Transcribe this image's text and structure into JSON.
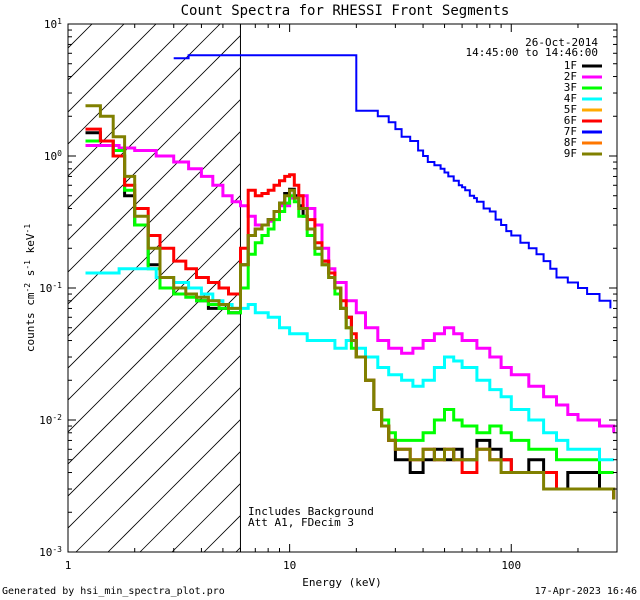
{
  "chart_data": {
    "type": "line",
    "title": "Count Spectra for RHESSI Front Segments",
    "xlabel": "Energy (keV)",
    "ylabel": "counts cm^-2 s^-1 keV^-1",
    "x_scale": "log",
    "y_scale": "log",
    "xlim": [
      1,
      300
    ],
    "ylim": [
      0.001,
      10
    ],
    "x_ticks": [
      {
        "value": 1,
        "label": "1"
      },
      {
        "value": 10,
        "label": "10"
      },
      {
        "value": 100,
        "label": "100"
      }
    ],
    "y_ticks": [
      {
        "value": 10,
        "base": "10",
        "exp": "1"
      },
      {
        "value": 1,
        "base": "10",
        "exp": "0"
      },
      {
        "value": 0.1,
        "base": "10",
        "exp": "-1"
      },
      {
        "value": 0.01,
        "base": "10",
        "exp": "-2"
      },
      {
        "value": 0.001,
        "base": "10",
        "exp": "-3"
      }
    ],
    "date_label": "26-Oct-2014",
    "time_range_label": "14:45:00 to 14:46:00",
    "annotations": [
      "Includes Background",
      "Att A1, FDecim 3"
    ],
    "attenuator_cutoff_kev": 6,
    "legend_position": "top-right",
    "series": [
      {
        "name": "1F",
        "color": "#000000",
        "x": [
          1.2,
          1.4,
          1.6,
          1.8,
          2.0,
          2.3,
          2.6,
          3.0,
          3.4,
          3.8,
          4.3,
          4.8,
          5.3,
          6.0,
          6.5,
          7.0,
          7.5,
          8.0,
          8.5,
          9.0,
          9.5,
          10.0,
          10.5,
          11.0,
          11.5,
          12.0,
          13.0,
          14.0,
          15.0,
          16.0,
          17.0,
          18.0,
          19.0,
          20.0,
          22,
          24,
          26,
          28,
          30,
          35,
          40,
          45,
          50,
          55,
          60,
          70,
          80,
          90,
          100,
          120,
          140,
          160,
          180,
          200,
          250,
          290
        ],
        "y": [
          1.5,
          1.3,
          1.0,
          0.5,
          0.3,
          0.15,
          0.1,
          0.09,
          0.09,
          0.08,
          0.07,
          0.07,
          0.065,
          0.15,
          0.25,
          0.28,
          0.3,
          0.33,
          0.38,
          0.44,
          0.52,
          0.56,
          0.5,
          0.42,
          0.35,
          0.28,
          0.2,
          0.16,
          0.13,
          0.1,
          0.07,
          0.06,
          0.04,
          0.03,
          0.02,
          0.012,
          0.009,
          0.007,
          0.005,
          0.004,
          0.005,
          0.006,
          0.005,
          0.006,
          0.005,
          0.007,
          0.006,
          0.005,
          0.004,
          0.005,
          0.004,
          0.003,
          0.004,
          0.004,
          0.003,
          0.0025
        ]
      },
      {
        "name": "2F",
        "color": "#ff00ff",
        "x": [
          1.2,
          1.4,
          1.7,
          2.0,
          2.5,
          3.0,
          3.5,
          4.0,
          4.5,
          5.0,
          5.5,
          6.0,
          6.5,
          7.0,
          7.5,
          8.0,
          8.5,
          9.0,
          10.0,
          11.0,
          12.0,
          13.0,
          14.0,
          15.0,
          16.0,
          18.0,
          20,
          22,
          25,
          28,
          32,
          36,
          40,
          45,
          50,
          55,
          60,
          70,
          80,
          90,
          100,
          120,
          140,
          160,
          180,
          200,
          250,
          290
        ],
        "y": [
          1.2,
          1.2,
          1.15,
          1.1,
          1.0,
          0.9,
          0.8,
          0.7,
          0.6,
          0.5,
          0.45,
          0.42,
          0.35,
          0.3,
          0.3,
          0.32,
          0.38,
          0.42,
          0.48,
          0.5,
          0.4,
          0.3,
          0.2,
          0.14,
          0.11,
          0.08,
          0.065,
          0.05,
          0.04,
          0.035,
          0.032,
          0.035,
          0.04,
          0.045,
          0.05,
          0.045,
          0.04,
          0.035,
          0.03,
          0.025,
          0.022,
          0.018,
          0.015,
          0.013,
          0.011,
          0.01,
          0.009,
          0.008
        ]
      },
      {
        "name": "3F",
        "color": "#00ff00",
        "x": [
          1.2,
          1.4,
          1.6,
          1.8,
          2.0,
          2.3,
          2.6,
          3.0,
          3.4,
          3.8,
          4.3,
          4.8,
          5.3,
          6.0,
          6.5,
          7.0,
          7.5,
          8.0,
          8.5,
          9.0,
          9.5,
          10.0,
          10.5,
          11.0,
          12.0,
          13.0,
          14.0,
          15.0,
          16.0,
          17.0,
          18.0,
          19.0,
          20,
          22,
          24,
          26,
          28,
          30,
          35,
          40,
          45,
          50,
          55,
          60,
          70,
          80,
          90,
          100,
          120,
          140,
          160,
          180,
          200,
          250,
          290
        ],
        "y": [
          1.3,
          1.3,
          1.1,
          0.55,
          0.3,
          0.14,
          0.1,
          0.09,
          0.085,
          0.08,
          0.075,
          0.07,
          0.065,
          0.1,
          0.18,
          0.22,
          0.25,
          0.28,
          0.33,
          0.38,
          0.44,
          0.5,
          0.45,
          0.35,
          0.25,
          0.18,
          0.15,
          0.12,
          0.09,
          0.07,
          0.05,
          0.035,
          0.03,
          0.02,
          0.012,
          0.01,
          0.008,
          0.007,
          0.007,
          0.008,
          0.01,
          0.012,
          0.01,
          0.009,
          0.008,
          0.009,
          0.008,
          0.007,
          0.006,
          0.006,
          0.005,
          0.005,
          0.005,
          0.004,
          0.004
        ]
      },
      {
        "name": "4F",
        "color": "#00ffff",
        "x": [
          1.2,
          1.4,
          1.7,
          2.0,
          2.5,
          3.0,
          3.5,
          4.0,
          4.5,
          5.0,
          5.5,
          6.0,
          6.5,
          7.0,
          8.0,
          9.0,
          10.0,
          11.0,
          12.0,
          14.0,
          16.0,
          18.0,
          20,
          22,
          25,
          28,
          32,
          36,
          40,
          45,
          50,
          55,
          60,
          70,
          80,
          90,
          100,
          120,
          140,
          160,
          180,
          200,
          250,
          290
        ],
        "y": [
          0.13,
          0.13,
          0.14,
          0.14,
          0.12,
          0.11,
          0.1,
          0.09,
          0.08,
          0.075,
          0.07,
          0.07,
          0.075,
          0.065,
          0.06,
          0.05,
          0.045,
          0.045,
          0.04,
          0.04,
          0.035,
          0.04,
          0.035,
          0.03,
          0.025,
          0.022,
          0.02,
          0.018,
          0.02,
          0.025,
          0.03,
          0.028,
          0.025,
          0.02,
          0.017,
          0.015,
          0.012,
          0.01,
          0.008,
          0.007,
          0.006,
          0.006,
          0.005,
          0.005
        ]
      },
      {
        "name": "5F",
        "color": "#ffaa00",
        "x": [],
        "y": []
      },
      {
        "name": "6F",
        "color": "#ff0000",
        "x": [
          1.2,
          1.4,
          1.6,
          1.8,
          2.0,
          2.3,
          2.6,
          3.0,
          3.4,
          3.8,
          4.3,
          4.8,
          5.3,
          6.0,
          6.5,
          7.0,
          7.5,
          8.0,
          8.5,
          9.0,
          9.5,
          10.0,
          10.5,
          11.0,
          11.5,
          12.0,
          13.0,
          14.0,
          15.0,
          16.0,
          17.0,
          18.0,
          19.0,
          20,
          22,
          24,
          26,
          28,
          30,
          35,
          40,
          45,
          50,
          55,
          60,
          70,
          80,
          90,
          100,
          120,
          140,
          160,
          180,
          200,
          250,
          290
        ],
        "y": [
          1.6,
          1.3,
          1.0,
          0.6,
          0.4,
          0.25,
          0.2,
          0.16,
          0.14,
          0.12,
          0.11,
          0.1,
          0.09,
          0.2,
          0.55,
          0.5,
          0.52,
          0.55,
          0.6,
          0.65,
          0.7,
          0.72,
          0.6,
          0.5,
          0.4,
          0.33,
          0.22,
          0.16,
          0.13,
          0.1,
          0.08,
          0.06,
          0.045,
          0.03,
          0.02,
          0.012,
          0.009,
          0.007,
          0.006,
          0.005,
          0.006,
          0.005,
          0.006,
          0.005,
          0.004,
          0.006,
          0.005,
          0.005,
          0.004,
          0.004,
          0.004,
          0.003,
          0.003,
          0.003,
          0.003,
          0.0025
        ]
      },
      {
        "name": "7F",
        "color": "#0000ff",
        "x": [
          3.0,
          3.5,
          20,
          25,
          28,
          30,
          32,
          35,
          38,
          40,
          42,
          45,
          48,
          50,
          52,
          55,
          58,
          60,
          62,
          65,
          68,
          70,
          75,
          80,
          85,
          90,
          95,
          100,
          110,
          120,
          130,
          140,
          150,
          160,
          180,
          200,
          220,
          250,
          280
        ],
        "y": [
          5.5,
          5.8,
          2.2,
          2.0,
          1.8,
          1.6,
          1.4,
          1.3,
          1.1,
          1.0,
          0.9,
          0.85,
          0.8,
          0.75,
          0.7,
          0.65,
          0.6,
          0.58,
          0.55,
          0.5,
          0.48,
          0.45,
          0.4,
          0.38,
          0.33,
          0.3,
          0.27,
          0.25,
          0.22,
          0.2,
          0.18,
          0.16,
          0.14,
          0.12,
          0.11,
          0.1,
          0.09,
          0.08,
          0.07
        ]
      },
      {
        "name": "8F",
        "color": "#ff7700",
        "x": [],
        "y": []
      },
      {
        "name": "9F",
        "color": "#808000",
        "x": [
          1.2,
          1.4,
          1.6,
          1.8,
          2.0,
          2.3,
          2.6,
          3.0,
          3.4,
          3.8,
          4.3,
          4.8,
          5.3,
          6.0,
          6.5,
          7.0,
          7.5,
          8.0,
          8.5,
          9.0,
          9.5,
          10.0,
          10.5,
          11.0,
          12.0,
          13.0,
          14.0,
          15.0,
          16.0,
          17.0,
          18.0,
          19.0,
          20,
          22,
          24,
          26,
          28,
          30,
          35,
          40,
          45,
          50,
          55,
          60,
          70,
          80,
          90,
          100,
          120,
          140,
          160,
          180,
          200,
          250,
          290
        ],
        "y": [
          2.4,
          2.0,
          1.4,
          0.7,
          0.35,
          0.2,
          0.12,
          0.1,
          0.09,
          0.085,
          0.08,
          0.075,
          0.07,
          0.15,
          0.25,
          0.28,
          0.3,
          0.33,
          0.38,
          0.44,
          0.5,
          0.55,
          0.48,
          0.4,
          0.28,
          0.2,
          0.15,
          0.12,
          0.1,
          0.07,
          0.05,
          0.04,
          0.03,
          0.02,
          0.012,
          0.009,
          0.007,
          0.006,
          0.005,
          0.006,
          0.005,
          0.006,
          0.005,
          0.005,
          0.006,
          0.005,
          0.004,
          0.004,
          0.004,
          0.003,
          0.003,
          0.003,
          0.003,
          0.003,
          0.0025
        ]
      }
    ]
  },
  "footer": {
    "generated_by": "Generated by hsi_min_spectra_plot.pro",
    "timestamp": "17-Apr-2023 16:46"
  }
}
